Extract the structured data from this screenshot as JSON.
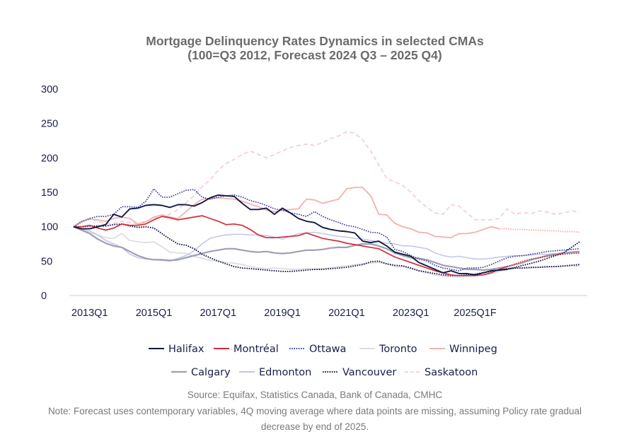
{
  "chart_data": {
    "type": "line",
    "title": "Mortgage Delinquency Rates Dynamics in selected CMAs",
    "subtitle": "(100=Q3 2012, Forecast 2024 Q3 – 2025 Q4)",
    "xlabel": "",
    "ylabel": "",
    "ylim": [
      0,
      300
    ],
    "yticks": [
      "0",
      "50",
      "100",
      "150",
      "200",
      "250",
      "300"
    ],
    "xtick_labels": [
      "2013Q1",
      "2015Q1",
      "2017Q1",
      "2019Q1",
      "2021Q1",
      "2023Q1",
      "2025Q1F"
    ],
    "x_start": "2012Q3",
    "forecast_start": "2024Q3",
    "grid": false,
    "legend_position": "bottom",
    "series": [
      {
        "name": "Halifax",
        "color": "#121849",
        "style": "solid",
        "width": 1.9,
        "values": [
          100,
          97,
          97,
          100,
          103,
          118,
          114,
          126,
          127,
          131,
          132,
          131,
          128,
          132,
          132,
          130,
          135,
          142,
          146,
          145,
          144,
          134,
          125,
          125,
          127,
          118,
          127,
          120,
          112,
          108,
          106,
          99,
          96,
          94,
          93,
          91,
          79,
          77,
          79,
          72,
          63,
          60,
          57,
          48,
          43,
          38,
          33,
          36,
          32,
          32,
          30,
          33,
          36,
          37,
          38,
          null,
          null,
          null,
          null,
          null,
          null,
          null,
          null,
          null
        ]
      },
      {
        "name": "Halifax forecast",
        "legend": false,
        "color": "#121849",
        "style": "dotted",
        "width": 1.9,
        "values": [
          null,
          null,
          null,
          null,
          null,
          null,
          null,
          null,
          null,
          null,
          null,
          null,
          null,
          null,
          null,
          null,
          null,
          null,
          null,
          null,
          null,
          null,
          null,
          null,
          null,
          null,
          null,
          null,
          null,
          null,
          null,
          null,
          null,
          null,
          null,
          null,
          null,
          null,
          null,
          null,
          null,
          null,
          null,
          null,
          null,
          null,
          null,
          null,
          null,
          null,
          null,
          null,
          null,
          null,
          38,
          41,
          44,
          47,
          50,
          54,
          58,
          62,
          70,
          78
        ]
      },
      {
        "name": "Montréal",
        "color": "#d42c37",
        "style": "solid",
        "width": 1.7,
        "values": [
          100,
          100,
          102,
          98,
          95,
          98,
          104,
          102,
          102,
          104,
          110,
          115,
          113,
          110,
          112,
          114,
          116,
          112,
          108,
          103,
          104,
          102,
          96,
          88,
          84,
          84,
          85,
          86,
          87,
          91,
          87,
          83,
          81,
          79,
          76,
          74,
          72,
          70,
          68,
          62,
          56,
          52,
          48,
          44,
          40,
          36,
          33,
          30,
          29,
          29,
          29,
          30,
          33,
          38,
          42,
          null,
          null,
          null,
          null,
          null,
          null,
          null,
          null,
          null
        ]
      },
      {
        "name": "Montréal forecast",
        "legend": false,
        "color": "#d42c37",
        "style": "dotted",
        "width": 1.7,
        "values": [
          null,
          null,
          null,
          null,
          null,
          null,
          null,
          null,
          null,
          null,
          null,
          null,
          null,
          null,
          null,
          null,
          null,
          null,
          null,
          null,
          null,
          null,
          null,
          null,
          null,
          null,
          null,
          null,
          null,
          null,
          null,
          null,
          null,
          null,
          null,
          null,
          null,
          null,
          null,
          null,
          null,
          null,
          null,
          null,
          null,
          null,
          null,
          null,
          null,
          null,
          null,
          null,
          null,
          null,
          42,
          46,
          50,
          53,
          55,
          57,
          59,
          60,
          61,
          62
        ]
      },
      {
        "name": "Ottawa",
        "color": "#3d3f9c",
        "style": "dotted",
        "width": 1.7,
        "values": [
          100,
          107,
          112,
          115,
          115,
          118,
          129,
          129,
          128,
          137,
          155,
          143,
          143,
          148,
          153,
          154,
          143,
          140,
          143,
          145,
          146,
          143,
          138,
          135,
          131,
          126,
          124,
          120,
          118,
          115,
          122,
          115,
          110,
          106,
          102,
          100,
          96,
          92,
          91,
          85,
          67,
          64,
          58,
          53,
          50,
          44,
          40,
          38,
          36,
          40,
          40,
          41,
          45,
          50,
          55,
          57,
          58,
          60,
          62,
          64,
          65,
          66,
          67,
          68
        ]
      },
      {
        "name": "Toronto",
        "color": "#dcdcdc",
        "style": "solid",
        "width": 1.7,
        "values": [
          100,
          95,
          92,
          88,
          84,
          83,
          90,
          80,
          78,
          77,
          78,
          71,
          63,
          62,
          61,
          57,
          54,
          51,
          50,
          48,
          47,
          45,
          42,
          40,
          39,
          40,
          39,
          38,
          38,
          39,
          38,
          39,
          40,
          42,
          43,
          45,
          46,
          47,
          48,
          46,
          42,
          42,
          39,
          36,
          33,
          30,
          28,
          27,
          27,
          28,
          29,
          30,
          32,
          35,
          38,
          39,
          40,
          40,
          41,
          41,
          42,
          42,
          43,
          43
        ]
      },
      {
        "name": "Winnipeg",
        "color": "#f5b3b3",
        "style": "solid",
        "width": 1.9,
        "values": [
          100,
          108,
          111,
          110,
          108,
          112,
          114,
          112,
          104,
          107,
          114,
          117,
          114,
          112,
          122,
          132,
          140,
          141,
          142,
          141,
          140,
          137,
          133,
          129,
          124,
          122,
          124,
          125,
          126,
          140,
          139,
          134,
          137,
          140,
          155,
          157,
          157,
          145,
          118,
          117,
          105,
          100,
          97,
          92,
          91,
          86,
          85,
          84,
          90,
          90,
          92,
          96,
          100,
          97,
          null,
          null,
          null,
          null,
          null,
          null,
          null,
          null,
          null,
          null
        ]
      },
      {
        "name": "Winnipeg forecast",
        "legend": false,
        "color": "#f5b3b3",
        "style": "dotted",
        "width": 1.9,
        "values": [
          null,
          null,
          null,
          null,
          null,
          null,
          null,
          null,
          null,
          null,
          null,
          null,
          null,
          null,
          null,
          null,
          null,
          null,
          null,
          null,
          null,
          null,
          null,
          null,
          null,
          null,
          null,
          null,
          null,
          null,
          null,
          null,
          null,
          null,
          null,
          null,
          null,
          null,
          null,
          null,
          null,
          null,
          null,
          null,
          null,
          null,
          null,
          null,
          null,
          null,
          null,
          null,
          null,
          97,
          97,
          96,
          96,
          95,
          95,
          94,
          94,
          93,
          93,
          92
        ]
      },
      {
        "name": "Calgary",
        "color": "#9e9fb5",
        "style": "solid",
        "width": 2.2,
        "values": [
          100,
          95,
          90,
          82,
          76,
          72,
          70,
          64,
          58,
          54,
          52,
          52,
          51,
          52,
          55,
          58,
          61,
          64,
          66,
          68,
          68,
          66,
          64,
          63,
          64,
          62,
          61,
          62,
          64,
          66,
          66,
          67,
          69,
          70,
          70,
          73,
          75,
          75,
          72,
          68,
          62,
          58,
          55,
          54,
          52,
          48,
          44,
          42,
          40,
          38,
          38,
          37,
          38,
          40,
          42,
          45,
          48,
          52,
          55,
          58,
          60,
          62,
          63,
          64
        ]
      },
      {
        "name": "Edmonton",
        "color": "#c2c5e8",
        "style": "solid",
        "width": 1.5,
        "values": [
          100,
          96,
          94,
          88,
          80,
          75,
          70,
          60,
          55,
          53,
          52,
          51,
          50,
          54,
          58,
          65,
          75,
          83,
          86,
          88,
          89,
          89,
          88,
          88,
          87,
          85,
          82,
          86,
          90,
          91,
          92,
          90,
          88,
          86,
          85,
          83,
          82,
          80,
          78,
          76,
          75,
          72,
          72,
          70,
          68,
          62,
          58,
          56,
          57,
          55,
          53,
          53,
          54,
          56,
          57,
          58,
          58,
          59,
          60,
          60,
          61,
          61,
          62,
          62
        ]
      },
      {
        "name": "Vancouver",
        "color": "#121849",
        "style": "dotted",
        "width": 1.9,
        "values": [
          100,
          100,
          101,
          101,
          101,
          103,
          104,
          101,
          99,
          100,
          98,
          90,
          82,
          75,
          73,
          68,
          60,
          55,
          50,
          46,
          42,
          40,
          39,
          38,
          37,
          36,
          35,
          35,
          36,
          37,
          38,
          38,
          39,
          40,
          41,
          43,
          45,
          49,
          50,
          46,
          44,
          43,
          40,
          36,
          34,
          32,
          30,
          29,
          29,
          30,
          31,
          33,
          35,
          37,
          39,
          40,
          40,
          41,
          41,
          42,
          42,
          43,
          44,
          45
        ]
      },
      {
        "name": "Saskatoon",
        "color": "#f4d2d8",
        "style": "dashed",
        "width": 1.9,
        "values": [
          100,
          108,
          112,
          108,
          104,
          105,
          108,
          106,
          104,
          108,
          112,
          115,
          118,
          125,
          135,
          145,
          158,
          168,
          182,
          192,
          198,
          205,
          210,
          205,
          200,
          205,
          210,
          215,
          218,
          220,
          218,
          222,
          228,
          232,
          238,
          236,
          226,
          210,
          190,
          170,
          165,
          160,
          150,
          138,
          128,
          120,
          118,
          132,
          130,
          120,
          110,
          110,
          110,
          112,
          126,
          118,
          121,
          119,
          123,
          121,
          118,
          120,
          123,
          121
        ]
      }
    ]
  },
  "legend": {
    "items": [
      "Halifax",
      "Montréal",
      "Ottawa",
      "Toronto",
      "Winnipeg",
      "Calgary",
      "Edmonton",
      "Vancouver",
      "Saskatoon"
    ]
  },
  "footer": {
    "source": "Source: Equifax, Statistics Canada, Bank of Canada, CMHC",
    "note_line1": "Note: Forecast uses contemporary variables, 4Q moving average where data points are missing, assuming Policy rate gradual",
    "note_line2": "decrease by end of 2025."
  }
}
